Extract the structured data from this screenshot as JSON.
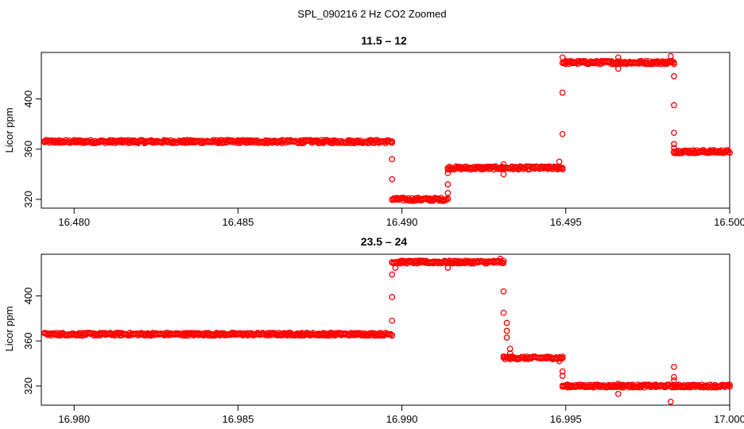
{
  "figure": {
    "title": "SPL_090216  2 Hz CO2 Zoomed",
    "point_color": "#ff0000"
  },
  "chart_data": [
    {
      "type": "scatter",
      "title": "11.5 – 12",
      "xlabel": "",
      "ylabel": "Licor ppm",
      "xlim": [
        16.479,
        16.5
      ],
      "ylim": [
        313,
        437
      ],
      "xticks": [
        16.48,
        16.485,
        16.49,
        16.495,
        16.5
      ],
      "xtick_labels": [
        "16.480",
        "16.485",
        "16.490",
        "16.495",
        "16.500"
      ],
      "yticks": [
        320,
        360,
        400
      ],
      "ytick_labels": [
        "320",
        "360",
        "400"
      ],
      "grid": false,
      "segments": [
        {
          "x": [
            16.4791,
            16.4897
          ],
          "y": 366
        },
        {
          "x": [
            16.4897,
            16.4914
          ],
          "y": 320
        },
        {
          "x": [
            16.4914,
            16.4949
          ],
          "y": 345
        },
        {
          "x": [
            16.4949,
            16.4983
          ],
          "y": 429
        },
        {
          "x": [
            16.4983,
            16.5
          ],
          "y": 358
        }
      ],
      "points": [
        [
          16.4897,
          352
        ],
        [
          16.4897,
          336
        ],
        [
          16.4914,
          325
        ],
        [
          16.4914,
          332
        ],
        [
          16.4914,
          341
        ],
        [
          16.4931,
          340
        ],
        [
          16.4931,
          348
        ],
        [
          16.4948,
          350
        ],
        [
          16.4949,
          372
        ],
        [
          16.4949,
          405
        ],
        [
          16.4949,
          433
        ],
        [
          16.4966,
          424
        ],
        [
          16.4966,
          433
        ],
        [
          16.4982,
          434
        ],
        [
          16.4983,
          418
        ],
        [
          16.4983,
          395
        ],
        [
          16.4983,
          373
        ],
        [
          16.4983,
          364
        ],
        [
          16.4983,
          361
        ]
      ]
    },
    {
      "type": "scatter",
      "title": "23.5 – 24",
      "xlabel": "",
      "ylabel": "Licor ppm",
      "xlim": [
        16.979,
        17.0
      ],
      "ylim": [
        303,
        437
      ],
      "xticks": [
        16.98,
        16.985,
        16.99,
        16.995,
        17.0
      ],
      "xtick_labels": [
        "16.980",
        "16.985",
        "16.990",
        "16.995",
        "17.000"
      ],
      "yticks": [
        320,
        360,
        400
      ],
      "ytick_labels": [
        "320",
        "360",
        "400"
      ],
      "grid": false,
      "segments": [
        {
          "x": [
            16.9791,
            16.9897
          ],
          "y": 366
        },
        {
          "x": [
            16.9897,
            16.9931
          ],
          "y": 430
        },
        {
          "x": [
            16.9931,
            16.9949
          ],
          "y": 345
        },
        {
          "x": [
            16.9949,
            17.0
          ],
          "y": 320
        }
      ],
      "points": [
        [
          16.9897,
          378
        ],
        [
          16.9897,
          399
        ],
        [
          16.9897,
          419
        ],
        [
          16.9898,
          425
        ],
        [
          16.9914,
          425
        ],
        [
          16.993,
          433
        ],
        [
          16.9931,
          404
        ],
        [
          16.9931,
          385
        ],
        [
          16.9932,
          376
        ],
        [
          16.9932,
          369
        ],
        [
          16.9932,
          363
        ],
        [
          16.9933,
          353
        ],
        [
          16.9933,
          349
        ],
        [
          16.9948,
          342
        ],
        [
          16.9949,
          333
        ],
        [
          16.9949,
          329
        ],
        [
          16.9966,
          313
        ],
        [
          16.9966,
          322
        ],
        [
          16.9982,
          306
        ],
        [
          16.9983,
          337
        ],
        [
          16.9983,
          328
        ],
        [
          16.9983,
          325
        ]
      ]
    }
  ]
}
